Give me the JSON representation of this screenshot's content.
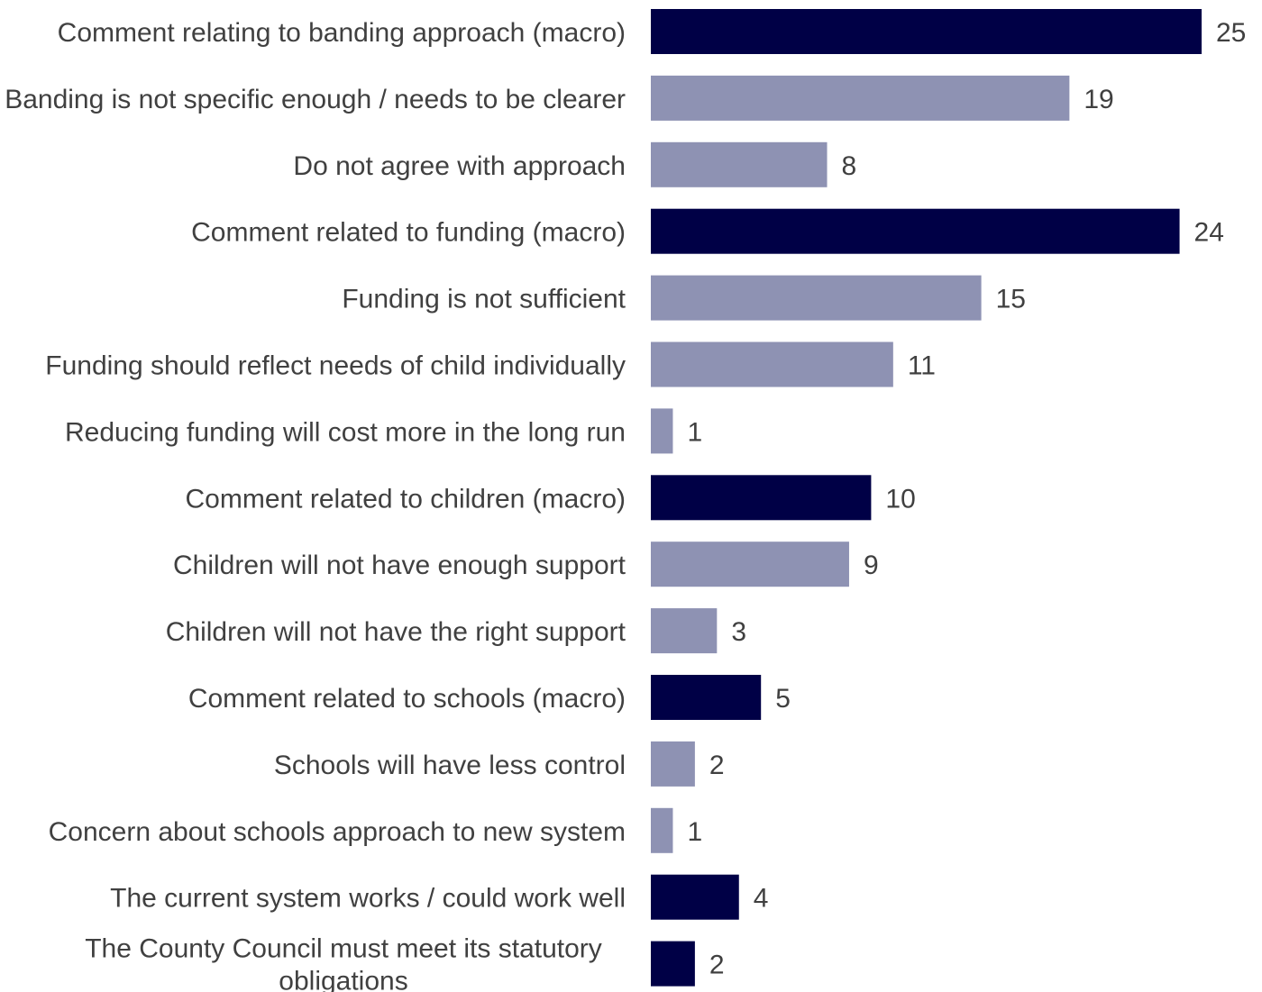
{
  "chart_data": {
    "type": "bar",
    "orientation": "horizontal",
    "categories": [
      "Comment relating to banding approach (macro)",
      "Banding is not specific enough / needs to be clearer",
      "Do not agree with approach",
      "Comment related to funding (macro)",
      "Funding is not sufficient",
      "Funding should reflect needs of child individually",
      "Reducing funding will cost more in the long run",
      "Comment related to children (macro)",
      "Children will not have enough support",
      "Children will not have the right support",
      "Comment related to schools (macro)",
      "Schools will have less control",
      "Concern about schools approach to new system",
      "The current system works / could work well",
      "The County Council must meet its statutory obligations"
    ],
    "values": [
      25,
      19,
      8,
      24,
      15,
      11,
      1,
      10,
      9,
      3,
      5,
      2,
      1,
      4,
      2
    ],
    "bar_kind": [
      "macro",
      "sub",
      "sub",
      "macro",
      "sub",
      "sub",
      "sub",
      "macro",
      "sub",
      "sub",
      "macro",
      "sub",
      "sub",
      "macro",
      "macro"
    ],
    "data_labels": [
      "25",
      "19",
      "8",
      "24",
      "15",
      "11",
      "1",
      "10",
      "9",
      "3",
      "5",
      "2",
      "1",
      "4",
      "2"
    ],
    "colors": {
      "macro": "#000046",
      "sub": "#8e92b3",
      "text": "#404040"
    },
    "xlim": [
      0,
      25
    ],
    "grid": false,
    "legend": "none",
    "title": "",
    "xlabel": "",
    "ylabel": ""
  }
}
